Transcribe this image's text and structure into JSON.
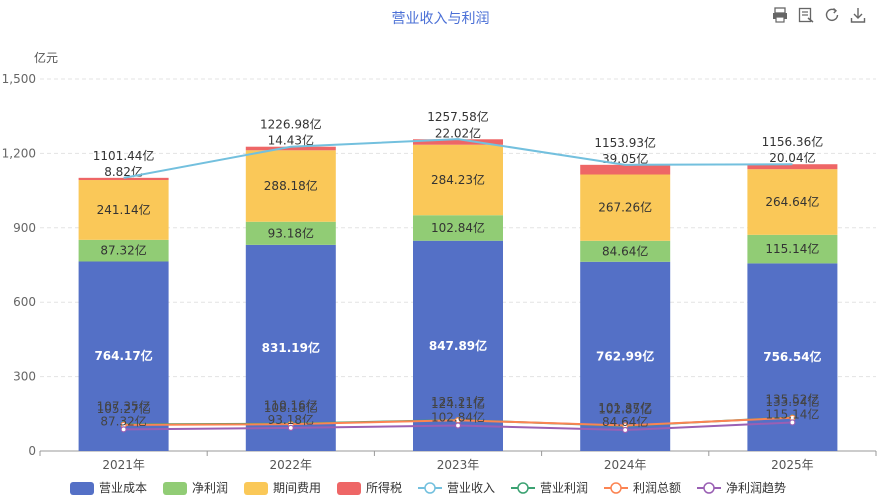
{
  "toolbox": {
    "print_icon": "print-icon",
    "data_view_icon": "data-view-icon",
    "refresh_icon": "refresh-icon",
    "download_icon": "download-icon"
  },
  "chart_data": {
    "type": "bar",
    "title": "营业收入与利润",
    "ylabel": "亿元",
    "ylim": [
      0,
      1500
    ],
    "yticks": [
      "0",
      "300",
      "600",
      "900",
      "1,200",
      "1,500"
    ],
    "categories": [
      "2021年",
      "2022年",
      "2023年",
      "2024年",
      "2025年"
    ],
    "stack": [
      {
        "name": "营业成本",
        "color": "#5470c6",
        "values": [
          764.17,
          831.19,
          847.89,
          762.99,
          756.54
        ],
        "labels": [
          "764.17亿",
          "831.19亿",
          "847.89亿",
          "762.99亿",
          "756.54亿"
        ]
      },
      {
        "name": "净利润",
        "color": "#91cc75",
        "values": [
          87.32,
          93.18,
          102.84,
          84.64,
          115.14
        ],
        "labels": [
          "87.32亿",
          "93.18亿",
          "102.84亿",
          "84.64亿",
          "115.14亿"
        ]
      },
      {
        "name": "期间费用",
        "color": "#fac858",
        "values": [
          241.14,
          288.18,
          284.23,
          267.26,
          264.64
        ],
        "labels": [
          "241.14亿",
          "288.18亿",
          "284.23亿",
          "267.26亿",
          "264.64亿"
        ]
      },
      {
        "name": "所得税",
        "color": "#ee6666",
        "values": [
          8.82,
          14.43,
          22.02,
          39.05,
          20.04
        ],
        "labels": [
          "8.82亿",
          "14.43亿",
          "22.02亿",
          "39.05亿",
          "20.04亿"
        ]
      }
    ],
    "lines": [
      {
        "name": "营业收入",
        "color": "#73c0de",
        "values": [
          1101.44,
          1226.98,
          1257.58,
          1153.93,
          1156.36
        ],
        "labels": [
          "1101.44亿",
          "1226.98亿",
          "1257.58亿",
          "1153.93亿",
          "1156.36亿"
        ]
      },
      {
        "name": "营业利润",
        "color": "#3ba272",
        "values": [
          107.35,
          110.16,
          125.21,
          101.37,
          135.52
        ],
        "labels": [
          "107.35亿",
          "110.16亿",
          "125.21亿",
          "101.37亿",
          "135.52亿"
        ]
      },
      {
        "name": "利润总额",
        "color": "#fc8452",
        "values": [
          105.27,
          108.18,
          124.11,
          102.85,
          133.94
        ],
        "labels": [
          "105.27亿",
          "108.18亿",
          "124.11亿",
          "102.85亿",
          "133.94亿"
        ]
      },
      {
        "name": "净利润趋势",
        "color": "#9a60b4",
        "values": [
          87.32,
          93.18,
          102.84,
          84.64,
          115.14
        ],
        "labels": [
          "87.32亿",
          "93.18亿",
          "102.84亿",
          "84.64亿",
          "115.14亿"
        ]
      }
    ],
    "legend_position": "bottom",
    "grid": true
  }
}
